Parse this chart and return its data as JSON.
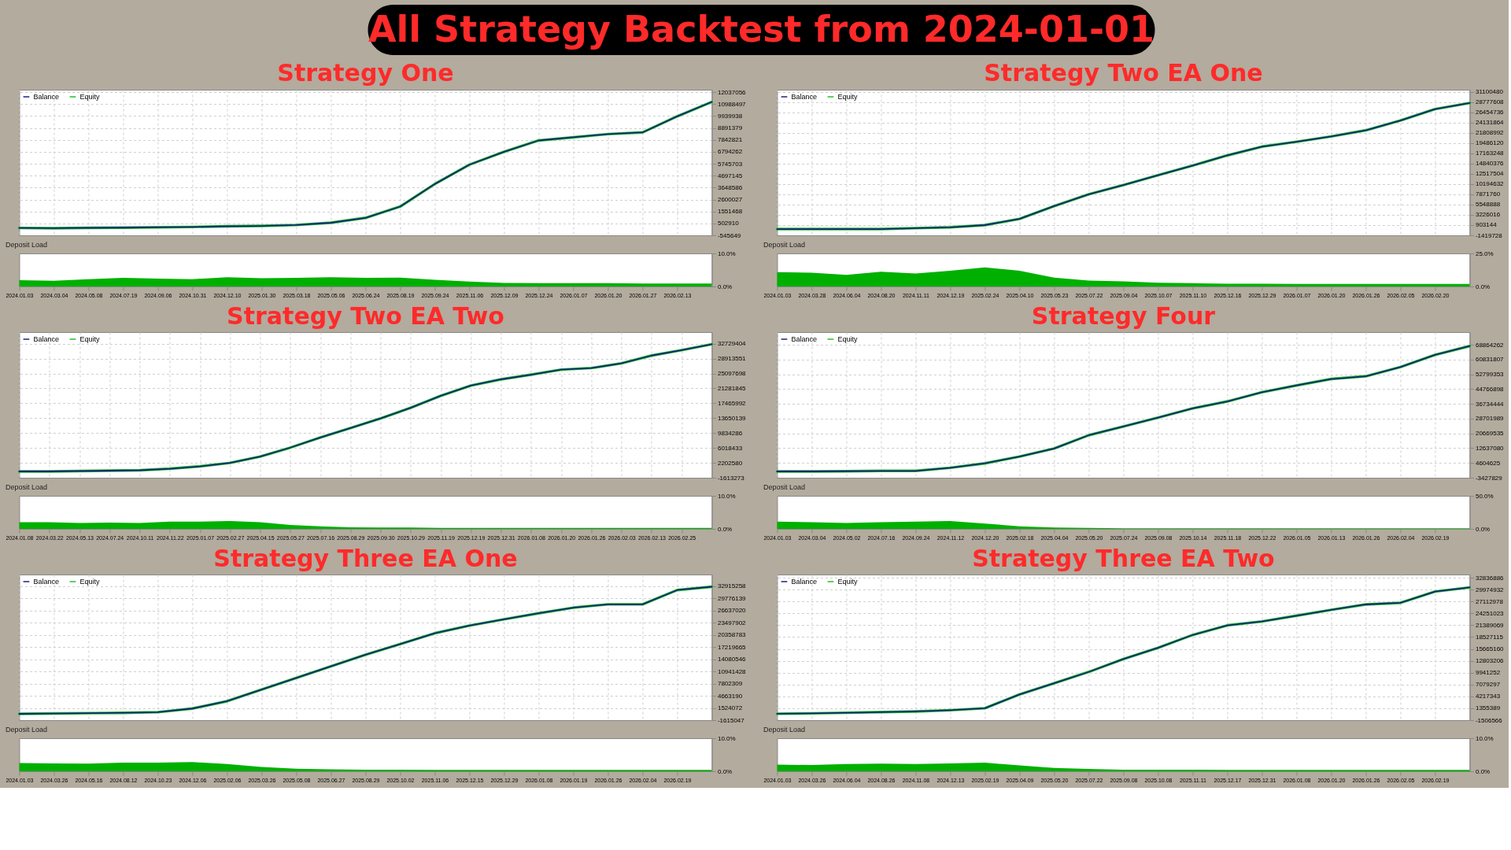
{
  "chart_data": [
    {
      "type": "other",
      "title": "All Strategy Backtest from 2024-01-01"
    },
    {
      "type": "line",
      "title": "Strategy One",
      "categories": [
        "2024.01.03",
        "2024.03.04",
        "2024.05.08",
        "2024.07.19",
        "2024.09.06",
        "2024.10.31",
        "2024.12.10",
        "2025.01.30",
        "2025.03.18",
        "2025.05.06",
        "2025.06.24",
        "2025.08.19",
        "2025.09.24",
        "2025.11.06",
        "2025.12.09",
        "2025.12.24",
        "2026.01.07",
        "2026.01.20",
        "2026.01.27",
        "2026.02.13",
        null
      ],
      "series": [
        {
          "name": "Balance",
          "color": "#1a237e",
          "values": [
            100000,
            80000,
            110000,
            130000,
            160000,
            190000,
            250000,
            280000,
            360000,
            560000,
            990000,
            1980000,
            3960000,
            5660000,
            6790000,
            7790000,
            8070000,
            8350000,
            8500000,
            9910000,
            11180000
          ]
        },
        {
          "name": "Equity",
          "color": "#22c02a",
          "values": [
            100000,
            80000,
            110000,
            130000,
            160000,
            190000,
            250000,
            280000,
            360000,
            560000,
            990000,
            1980000,
            3960000,
            5660000,
            6790000,
            7790000,
            8070000,
            8350000,
            8500000,
            9910000,
            11180000
          ]
        }
      ],
      "ylim": [
        -545649,
        12250000
      ],
      "yticks": [
        -545649,
        502910,
        1551468,
        2600027,
        3648586,
        4697145,
        5745703,
        6794262,
        7842821,
        8891379,
        9939938,
        10988497,
        12037056
      ],
      "grid": true,
      "legend": "top left",
      "tick_labels": "y"
    },
    {
      "type": "area",
      "title": "Deposit Load",
      "categories": [
        "2024.01.03",
        "2024.03.04",
        "2024.05.08",
        "2024.07.19",
        "2024.09.06",
        "2024.10.31",
        "2024.12.10",
        "2025.01.30",
        "2025.03.18",
        "2025.05.06",
        "2025.06.24",
        "2025.08.19",
        "2025.09.24",
        "2025.11.06",
        "2025.12.09",
        "2025.12.24",
        "2026.01.07",
        "2026.01.20",
        "2026.01.27",
        "2026.02.13",
        null
      ],
      "series": [
        {
          "color": "#00b000",
          "values": [
            1.9,
            1.7,
            2.2,
            2.6,
            2.4,
            2.2,
            2.8,
            2.5,
            2.6,
            2.8,
            2.6,
            2.7,
            2.0,
            1.5,
            1.1,
            1.0,
            1.0,
            1.0,
            0.9,
            0.9,
            0.9
          ]
        }
      ],
      "ylim": [
        0,
        10
      ],
      "yticks": [
        {
          "value": 0,
          "label": "0.0%"
        },
        {
          "value": 10,
          "label": "10.0%"
        }
      ]
    },
    {
      "type": "line",
      "title": "Strategy Two EA One",
      "categories": [
        "2024.01.03",
        "2024.03.28",
        "2024.06.04",
        "2024.08.20",
        "2024.11.11",
        "2024.12.19",
        "2025.02.24",
        "2025.04.10",
        "2025.05.23",
        "2025.07.22",
        "2025.09.04",
        "2025.10.07",
        "2025.11.10",
        "2025.12.16",
        "2025.12.29",
        "2026.01.07",
        "2026.01.20",
        "2026.01.26",
        "2026.02.05",
        "2026.02.20",
        null
      ],
      "series": [
        {
          "name": "Balance",
          "color": "#1a237e",
          "values": [
            0,
            0,
            0,
            0,
            200000,
            400000,
            900000,
            2300000,
            5200000,
            7900000,
            10000000,
            12200000,
            14400000,
            16700000,
            18700000,
            19800000,
            21000000,
            22400000,
            24600000,
            27200000,
            28600000
          ]
        },
        {
          "name": "Equity",
          "color": "#22c02a",
          "values": [
            0,
            0,
            0,
            0,
            200000,
            400000,
            900000,
            2300000,
            5200000,
            7900000,
            10000000,
            12200000,
            14400000,
            16700000,
            18700000,
            19800000,
            21000000,
            22400000,
            24600000,
            27200000,
            28600000
          ]
        }
      ],
      "ylim": [
        -1419728,
        31600000
      ],
      "yticks": [
        -1419728,
        903144,
        3226016,
        5548888,
        7871760,
        10194632,
        12517504,
        14840376,
        17163248,
        19486120,
        21808992,
        24131864,
        26454736,
        28777608,
        31100480
      ],
      "grid": true,
      "legend": "top left",
      "tick_labels": "y"
    },
    {
      "type": "area",
      "title": "Deposit Load",
      "categories": [
        "2024.01.03",
        "2024.03.28",
        "2024.06.04",
        "2024.08.20",
        "2024.11.11",
        "2024.12.19",
        "2025.02.24",
        "2025.04.10",
        "2025.05.23",
        "2025.07.22",
        "2025.09.04",
        "2025.10.07",
        "2025.11.10",
        "2025.12.16",
        "2025.12.29",
        "2026.01.07",
        "2026.01.20",
        "2026.01.26",
        "2026.02.05",
        "2026.02.20",
        null
      ],
      "series": [
        {
          "color": "#00b000",
          "values": [
            10.8,
            10.4,
            8.8,
            11.2,
            9.8,
            11.9,
            14.4,
            11.9,
            6.7,
            4.4,
            3.9,
            2.9,
            2.5,
            2.1,
            2.1,
            2.0,
            2.0,
            2.0,
            2.0,
            2.0,
            2.0
          ]
        }
      ],
      "ylim": [
        0,
        25
      ],
      "yticks": [
        {
          "value": 0,
          "label": "0.0%"
        },
        {
          "value": 25,
          "label": "25.0%"
        }
      ]
    },
    {
      "type": "line",
      "title": "Strategy Two EA Two",
      "categories": [
        "2024.01.08",
        "2024.03.22",
        "2024.05.13",
        "2024.07.24",
        "2024.10.11",
        "2024.11.22",
        "2025.01.07",
        "2025.02.27",
        "2025.04.15",
        "2025.05.27",
        "2025.07.16",
        "2025.08.29",
        "2025.09.30",
        "2025.10.29",
        "2025.11.19",
        "2025.12.19",
        "2025.12.31",
        "2026.01.08",
        "2026.01.20",
        "2026.01.26",
        "2026.02.03",
        "2026.02.13",
        "2026.02.25",
        null
      ],
      "series": [
        {
          "name": "Balance",
          "color": "#1a237e",
          "values": [
            0,
            0,
            100000,
            200000,
            300000,
            700000,
            1300000,
            2200000,
            3800000,
            6100000,
            8700000,
            11100000,
            13600000,
            16300000,
            19400000,
            22000000,
            23600000,
            24800000,
            26100000,
            26500000,
            27700000,
            29700000,
            31100000,
            32600000
          ]
        },
        {
          "name": "Equity",
          "color": "#22c02a",
          "values": [
            0,
            0,
            100000,
            200000,
            300000,
            700000,
            1300000,
            2200000,
            3800000,
            6100000,
            8700000,
            11100000,
            13600000,
            16300000,
            19400000,
            22000000,
            23600000,
            24800000,
            26100000,
            26500000,
            27700000,
            29700000,
            31100000,
            32600000
          ]
        }
      ],
      "ylim": [
        -1613273,
        35700000
      ],
      "yticks": [
        -1613273,
        2202580,
        6018433,
        9834286,
        13650139,
        17465992,
        21281845,
        25097698,
        28913551,
        32729404
      ],
      "grid": true,
      "legend": "top left",
      "tick_labels": "y"
    },
    {
      "type": "area",
      "title": "Deposit Load",
      "categories": [
        "2024.01.08",
        "2024.03.22",
        "2024.05.13",
        "2024.07.24",
        "2024.10.11",
        "2024.11.22",
        "2025.01.07",
        "2025.02.27",
        "2025.04.15",
        "2025.05.27",
        "2025.07.16",
        "2025.08.29",
        "2025.09.30",
        "2025.10.29",
        "2025.11.19",
        "2025.12.19",
        "2025.12.31",
        "2026.01.08",
        "2026.01.20",
        "2026.01.26",
        "2026.02.03",
        "2026.02.13",
        "2026.02.25",
        null
      ],
      "series": [
        {
          "color": "#00b000",
          "values": [
            2.0,
            2.0,
            1.8,
            1.9,
            1.8,
            2.2,
            2.2,
            2.4,
            2.0,
            1.2,
            0.8,
            0.5,
            0.4,
            0.4,
            0.3,
            0.3,
            0.3,
            0.3,
            0.3,
            0.3,
            0.3,
            0.3,
            0.3,
            0.3
          ]
        }
      ],
      "ylim": [
        0,
        10
      ],
      "yticks": [
        {
          "value": 0,
          "label": "0.0%"
        },
        {
          "value": 10,
          "label": "10.0%"
        }
      ]
    },
    {
      "type": "line",
      "title": "Strategy Four",
      "categories": [
        "2024.01.03",
        "2024.03.04",
        "2024.05.02",
        "2024.07.16",
        "2024.09.24",
        "2024.11.12",
        "2024.12.20",
        "2025.02.18",
        "2025.04.04",
        "2025.05.20",
        "2025.07.24",
        "2025.09.08",
        "2025.10.14",
        "2025.11.18",
        "2025.12.22",
        "2026.01.05",
        "2026.01.13",
        "2026.01.26",
        "2026.02.04",
        "2026.02.19",
        null
      ],
      "series": [
        {
          "name": "Balance",
          "color": "#1a237e",
          "values": [
            0,
            0,
            100000,
            300000,
            300000,
            2000000,
            4400000,
            8100000,
            12500000,
            19700000,
            24500000,
            29300000,
            34300000,
            38100000,
            43100000,
            46800000,
            50300000,
            51800000,
            56800000,
            63400000,
            68200000
          ]
        },
        {
          "name": "Equity",
          "color": "#22c02a",
          "values": [
            0,
            0,
            100000,
            300000,
            300000,
            2000000,
            4400000,
            8100000,
            12500000,
            19700000,
            24500000,
            29300000,
            34300000,
            38100000,
            43100000,
            46800000,
            50300000,
            51800000,
            56800000,
            63400000,
            68200000
          ]
        }
      ],
      "ylim": [
        -3427829,
        75800000
      ],
      "yticks": [
        -3427829,
        4604625,
        12637080,
        20669535,
        28701989,
        36734444,
        44766898,
        52799353,
        60831807,
        68864262
      ],
      "grid": true,
      "legend": "top left",
      "tick_labels": "y"
    },
    {
      "type": "area",
      "title": "Deposit Load",
      "categories": [
        "2024.01.03",
        "2024.03.04",
        "2024.05.02",
        "2024.07.16",
        "2024.09.24",
        "2024.11.12",
        "2024.12.20",
        "2025.02.18",
        "2025.04.04",
        "2025.05.20",
        "2025.07.24",
        "2025.09.08",
        "2025.10.14",
        "2025.11.18",
        "2025.12.22",
        "2026.01.05",
        "2026.01.13",
        "2026.01.26",
        "2026.02.04",
        "2026.02.19",
        null
      ],
      "series": [
        {
          "color": "#00b000",
          "values": [
            11,
            10,
            9,
            10,
            11,
            12,
            8,
            4,
            2,
            1.5,
            1,
            1,
            1,
            1,
            1,
            1,
            1,
            1,
            1,
            1,
            1
          ]
        }
      ],
      "ylim": [
        0,
        50
      ],
      "yticks": [
        {
          "value": 0,
          "label": "0.0%"
        },
        {
          "value": 50,
          "label": "50.0%"
        }
      ]
    },
    {
      "type": "line",
      "title": "Strategy Three EA One",
      "categories": [
        "2024.01.03",
        "2024.03.26",
        "2024.05.16",
        "2024.08.12",
        "2024.10.23",
        "2024.12.06",
        "2025.02.06",
        "2025.03.26",
        "2025.05.08",
        "2025.06.27",
        "2025.08.29",
        "2025.10.02",
        "2025.11.06",
        "2025.12.15",
        "2025.12.29",
        "2026.01.08",
        "2026.01.19",
        "2026.01.26",
        "2026.02.04",
        "2026.02.19",
        null
      ],
      "series": [
        {
          "name": "Balance",
          "color": "#1a237e",
          "values": [
            10000,
            95000,
            180000,
            266000,
            437000,
            1377000,
            3258000,
            6251000,
            9244000,
            12236000,
            15229000,
            17965000,
            20786000,
            22753000,
            24377000,
            25916000,
            27370000,
            28225000,
            28225000,
            31901000,
            32756000
          ]
        },
        {
          "name": "Equity",
          "color": "#22c02a",
          "values": [
            10000,
            95000,
            180000,
            266000,
            437000,
            1377000,
            3258000,
            6251000,
            9244000,
            12236000,
            15229000,
            17965000,
            20786000,
            22753000,
            24377000,
            25916000,
            27370000,
            28225000,
            28225000,
            31901000,
            32756000
          ]
        }
      ],
      "ylim": [
        -1615047,
        35900000
      ],
      "yticks": [
        -1615047,
        1524072,
        4663190,
        7802309,
        10941428,
        14080546,
        17219665,
        20358783,
        23497902,
        26637020,
        29776139,
        32915258
      ],
      "grid": true,
      "legend": "top left",
      "tick_labels": "y"
    },
    {
      "type": "area",
      "title": "Deposit Load",
      "categories": [
        "2024.01.03",
        "2024.03.26",
        "2024.05.16",
        "2024.08.12",
        "2024.10.23",
        "2024.12.06",
        "2025.02.06",
        "2025.03.26",
        "2025.05.08",
        "2025.06.27",
        "2025.08.29",
        "2025.10.02",
        "2025.11.06",
        "2025.12.15",
        "2025.12.29",
        "2026.01.08",
        "2026.01.19",
        "2026.01.26",
        "2026.02.04",
        "2026.02.19",
        null
      ],
      "series": [
        {
          "color": "#00b000",
          "values": [
            2.5,
            2.4,
            2.3,
            2.6,
            2.6,
            2.8,
            2.2,
            1.3,
            0.8,
            0.6,
            0.5,
            0.5,
            0.4,
            0.4,
            0.4,
            0.4,
            0.4,
            0.4,
            0.4,
            0.4,
            0.4
          ]
        }
      ],
      "ylim": [
        0,
        10
      ],
      "yticks": [
        {
          "value": 0,
          "label": "0.0%"
        },
        {
          "value": 10,
          "label": "10.0%"
        }
      ]
    },
    {
      "type": "line",
      "title": "Strategy Three EA Two",
      "categories": [
        "2024.01.03",
        "2024.03.26",
        "2024.06.04",
        "2024.08.26",
        "2024.11.08",
        "2024.12.13",
        "2025.02.19",
        "2025.04.09",
        "2025.05.20",
        "2025.07.22",
        "2025.09.08",
        "2025.10.08",
        "2025.11.11",
        "2025.12.17",
        "2025.12.31",
        "2026.01.08",
        "2026.01.20",
        "2026.01.26",
        "2026.02.05",
        "2026.02.19",
        null
      ],
      "series": [
        {
          "name": "Balance",
          "color": "#1a237e",
          "values": [
            45000,
            122000,
            277000,
            432000,
            587000,
            897000,
            1363000,
            4697000,
            7412000,
            10126000,
            13228000,
            15942000,
            19044000,
            21370000,
            22301000,
            23697000,
            25093000,
            26411000,
            26799000,
            29513000,
            30521000
          ]
        },
        {
          "name": "Equity",
          "color": "#22c02a",
          "values": [
            45000,
            122000,
            277000,
            432000,
            587000,
            897000,
            1363000,
            4697000,
            7412000,
            10126000,
            13228000,
            15942000,
            19044000,
            21370000,
            22301000,
            23697000,
            25093000,
            26411000,
            26799000,
            29513000,
            30521000
          ]
        }
      ],
      "ylim": [
        -1506566,
        33623000
      ],
      "yticks": [
        -1506566,
        1355389,
        4217343,
        7079297,
        9941252,
        12803206,
        15665160,
        18527115,
        21389069,
        24251023,
        27112978,
        29974932,
        32836886
      ],
      "grid": true,
      "legend": "top left",
      "tick_labels": "y"
    },
    {
      "type": "area",
      "title": "Deposit Load",
      "categories": [
        "2024.01.03",
        "2024.03.26",
        "2024.06.04",
        "2024.08.26",
        "2024.11.08",
        "2024.12.13",
        "2025.02.19",
        "2025.04.09",
        "2025.05.20",
        "2025.07.22",
        "2025.09.08",
        "2025.10.08",
        "2025.11.11",
        "2025.12.17",
        "2025.12.31",
        "2026.01.08",
        "2026.01.20",
        "2026.01.26",
        "2026.02.05",
        "2026.02.19",
        null
      ],
      "series": [
        {
          "color": "#00b000",
          "values": [
            2.0,
            1.9,
            2.2,
            2.3,
            2.2,
            2.4,
            2.6,
            1.8,
            1.0,
            0.7,
            0.5,
            0.5,
            0.5,
            0.4,
            0.4,
            0.4,
            0.4,
            0.4,
            0.4,
            0.4,
            0.4
          ]
        }
      ],
      "ylim": [
        0,
        10
      ],
      "yticks": [
        {
          "value": 0,
          "label": "0.0%"
        },
        {
          "value": 10,
          "label": "10.0%"
        }
      ]
    }
  ]
}
